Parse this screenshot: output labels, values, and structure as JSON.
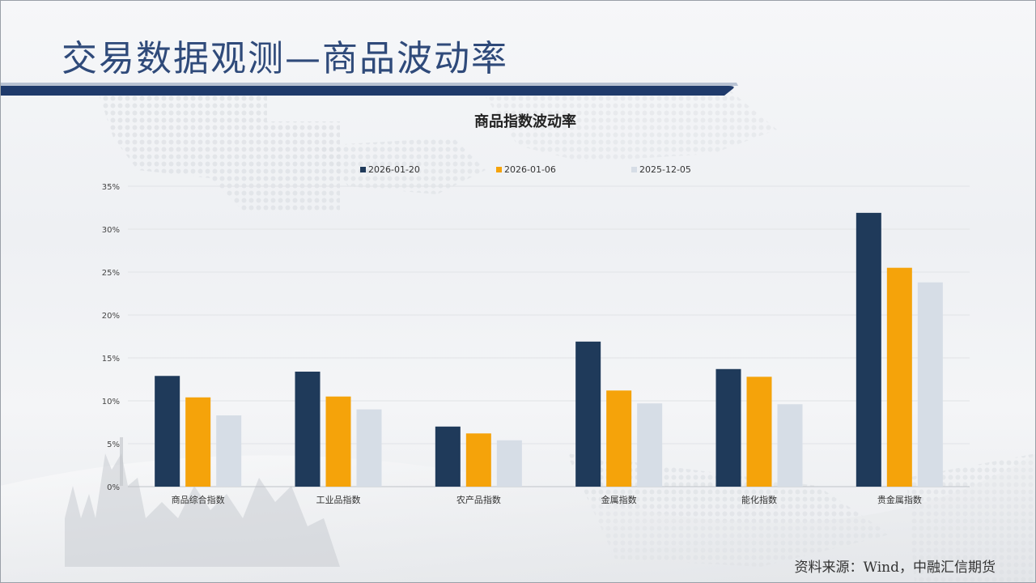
{
  "slide": {
    "title": "交易数据观测—商品波动率",
    "source": "资料来源：Wind，中融汇信期货"
  },
  "colors": {
    "title_text": "#2f4a7a",
    "title_bar": "#1f3a6b",
    "series_1": "#1f3a5a",
    "series_2": "#f5a30a",
    "series_3": "#d6dde6"
  },
  "chart_data": {
    "type": "bar",
    "title": "商品指数波动率",
    "xlabel": "",
    "ylabel": "",
    "ylim": [
      0,
      35
    ],
    "yticks": [
      0,
      5,
      10,
      15,
      20,
      25,
      30,
      35
    ],
    "ytick_labels": [
      "0%",
      "5%",
      "10%",
      "15%",
      "20%",
      "25%",
      "30%",
      "35%"
    ],
    "categories": [
      "商品综合指数",
      "工业品指数",
      "农产品指数",
      "金属指数",
      "能化指数",
      "贵金属指数"
    ],
    "series": [
      {
        "name": "2026-01-20",
        "color": "#1f3a5a",
        "values": [
          12.9,
          13.4,
          7.0,
          16.9,
          13.7,
          31.9
        ]
      },
      {
        "name": "2026-01-06",
        "color": "#f5a30a",
        "values": [
          10.4,
          10.5,
          6.2,
          11.2,
          12.8,
          25.5
        ]
      },
      {
        "name": "2025-12-05",
        "color": "#d6dde6",
        "values": [
          8.3,
          9.0,
          5.4,
          9.7,
          9.6,
          23.8
        ]
      }
    ],
    "legend_position": "top",
    "grid": true
  }
}
